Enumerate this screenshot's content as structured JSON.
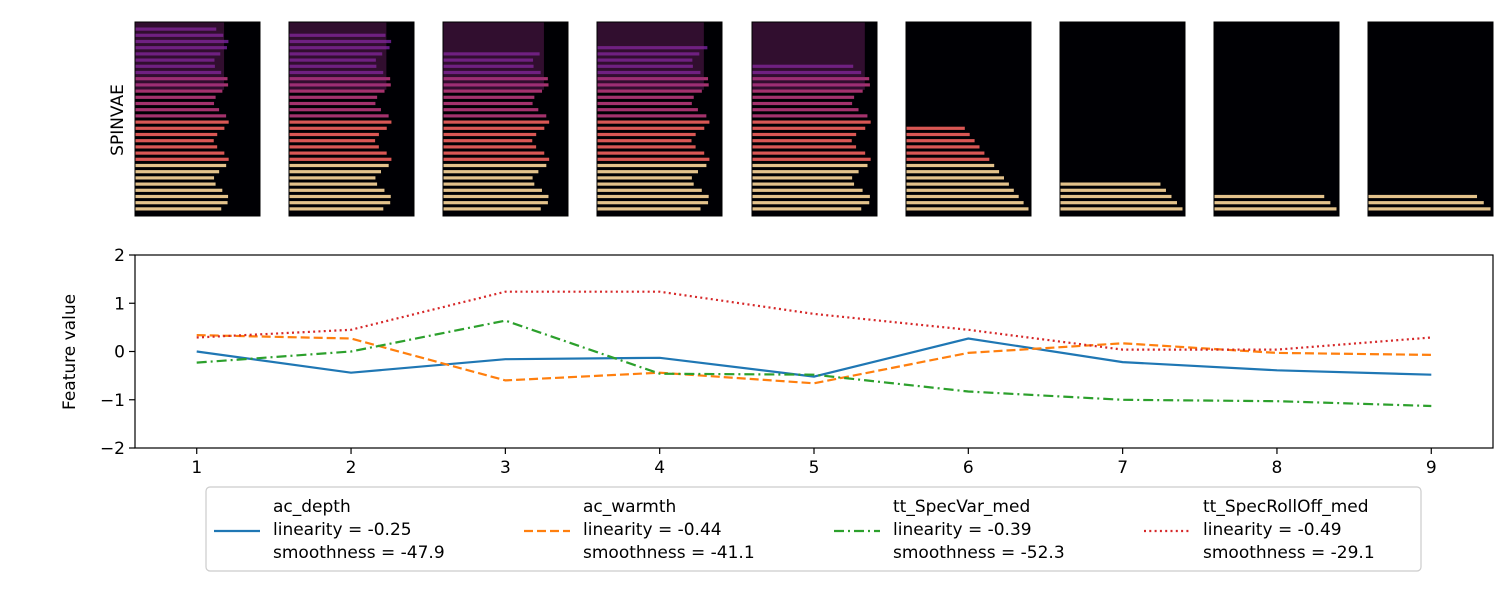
{
  "row_label": "SPINVAE",
  "spectrogram_panels": [
    {
      "index": 1
    },
    {
      "index": 2
    },
    {
      "index": 3
    },
    {
      "index": 4
    },
    {
      "index": 5
    },
    {
      "index": 6
    },
    {
      "index": 7
    },
    {
      "index": 8
    },
    {
      "index": 9
    }
  ],
  "colors": {
    "ac_depth": "#1f77b4",
    "ac_warmth": "#ff7f0e",
    "tt_SpecVar_med": "#2ca02c",
    "tt_SpecRollOff_med": "#d62728"
  },
  "chart_data": {
    "type": "line",
    "title": "",
    "xlabel": "",
    "ylabel": "Feature value",
    "x": [
      1,
      2,
      3,
      4,
      5,
      6,
      7,
      8,
      9
    ],
    "xticks": [
      "1",
      "2",
      "3",
      "4",
      "5",
      "6",
      "7",
      "8",
      "9"
    ],
    "yticks": [
      "2",
      "1",
      "0",
      "−1",
      "−2"
    ],
    "ylim": [
      -2,
      2
    ],
    "xlim": [
      0.6,
      9.4
    ],
    "grid": false,
    "legend_position": "bottom",
    "series": [
      {
        "name": "ac_depth",
        "linearity": "linearity = -0.25",
        "smoothness": "smoothness = -47.9",
        "style": "solid",
        "values": [
          0.0,
          -0.44,
          -0.16,
          -0.13,
          -0.52,
          0.27,
          -0.22,
          -0.39,
          -0.48
        ]
      },
      {
        "name": "ac_warmth",
        "linearity": "linearity = -0.44",
        "smoothness": "smoothness = -41.1",
        "style": "dashed",
        "values": [
          0.34,
          0.27,
          -0.6,
          -0.44,
          -0.66,
          -0.03,
          0.17,
          -0.03,
          -0.07
        ]
      },
      {
        "name": "tt_SpecVar_med",
        "linearity": "linearity = -0.39",
        "smoothness": "smoothness = -52.3",
        "style": "dashdot",
        "values": [
          -0.23,
          0.0,
          0.64,
          -0.46,
          -0.48,
          -0.83,
          -1.0,
          -1.03,
          -1.13
        ]
      },
      {
        "name": "tt_SpecRollOff_med",
        "linearity": "linearity = -0.49",
        "smoothness": "smoothness = -29.1",
        "style": "dotted",
        "values": [
          0.29,
          0.45,
          1.24,
          1.24,
          0.78,
          0.45,
          0.04,
          0.04,
          0.29
        ]
      }
    ]
  }
}
